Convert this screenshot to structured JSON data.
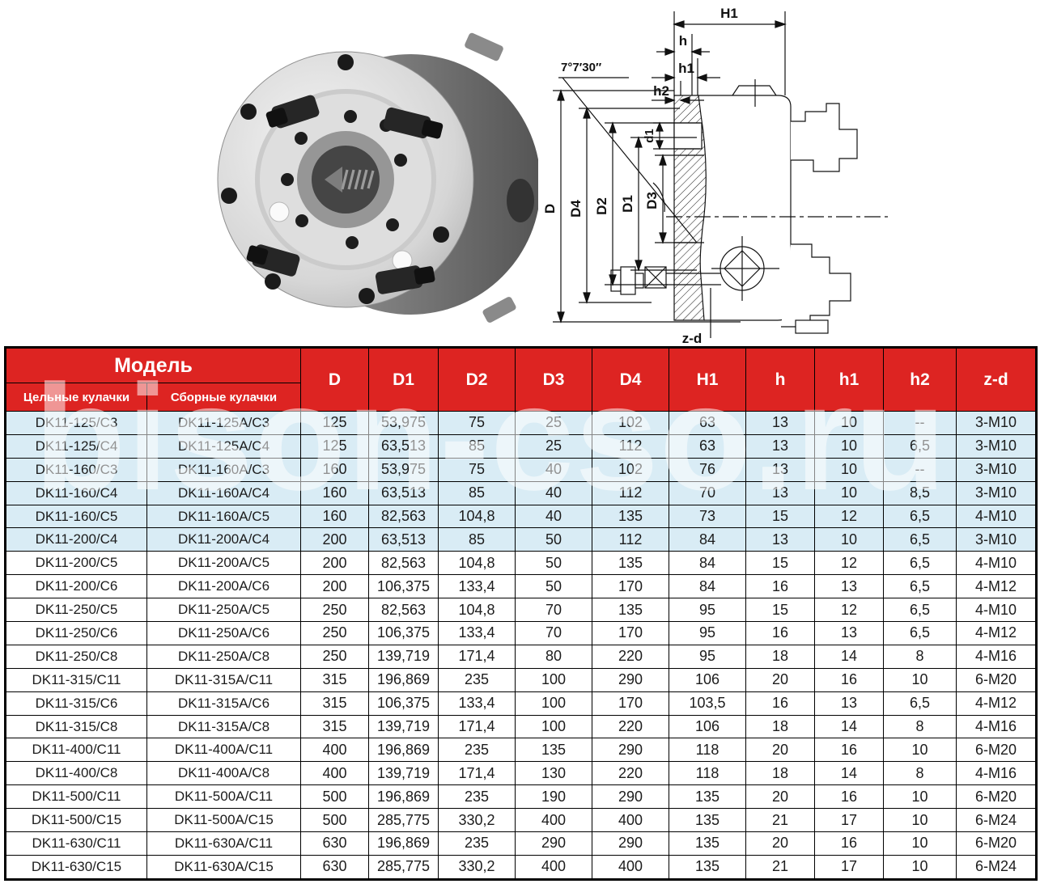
{
  "watermark": {
    "text": "bison-cso.ru"
  },
  "drawing": {
    "angle": "7°7′30″",
    "dims": {
      "H1": "H1",
      "h": "h",
      "h1": "h1",
      "h2": "h2",
      "d1": "d1",
      "D": "D",
      "D4": "D4",
      "D2": "D2",
      "D1": "D1",
      "D3": "D3",
      "zd": "z-d"
    }
  },
  "table": {
    "header": {
      "model": "Модель",
      "solid": "Цельные кулачки",
      "assembled": "Сборные кулачки",
      "dims": [
        "D",
        "D1",
        "D2",
        "D3",
        "D4",
        "H1",
        "h",
        "h1",
        "h2",
        "z-d"
      ]
    },
    "rows": [
      {
        "highlight": true,
        "cells": [
          "DK11-125/C3",
          "DK11-125A/C3",
          "125",
          "53,975",
          "75",
          "25",
          "102",
          "63",
          "13",
          "10",
          "--",
          "3-M10"
        ]
      },
      {
        "highlight": true,
        "cells": [
          "DK11-125/C4",
          "DK11-125A/C4",
          "125",
          "63,513",
          "85",
          "25",
          "112",
          "63",
          "13",
          "10",
          "6,5",
          "3-M10"
        ]
      },
      {
        "highlight": true,
        "cells": [
          "DK11-160/C3",
          "DK11-160A/C3",
          "160",
          "53,975",
          "75",
          "40",
          "102",
          "76",
          "13",
          "10",
          "--",
          "3-M10"
        ]
      },
      {
        "highlight": true,
        "cells": [
          "DK11-160/C4",
          "DK11-160A/C4",
          "160",
          "63,513",
          "85",
          "40",
          "112",
          "70",
          "13",
          "10",
          "8,5",
          "3-M10"
        ]
      },
      {
        "highlight": true,
        "cells": [
          "DK11-160/C5",
          "DK11-160A/C5",
          "160",
          "82,563",
          "104,8",
          "40",
          "135",
          "73",
          "15",
          "12",
          "6,5",
          "4-M10"
        ]
      },
      {
        "highlight": true,
        "cells": [
          "DK11-200/C4",
          "DK11-200A/C4",
          "200",
          "63,513",
          "85",
          "50",
          "112",
          "84",
          "13",
          "10",
          "6,5",
          "3-M10"
        ]
      },
      {
        "highlight": false,
        "cells": [
          "DK11-200/C5",
          "DK11-200A/C5",
          "200",
          "82,563",
          "104,8",
          "50",
          "135",
          "84",
          "15",
          "12",
          "6,5",
          "4-M10"
        ]
      },
      {
        "highlight": false,
        "cells": [
          "DK11-200/C6",
          "DK11-200A/C6",
          "200",
          "106,375",
          "133,4",
          "50",
          "170",
          "84",
          "16",
          "13",
          "6,5",
          "4-M12"
        ]
      },
      {
        "highlight": false,
        "cells": [
          "DK11-250/C5",
          "DK11-250A/C5",
          "250",
          "82,563",
          "104,8",
          "70",
          "135",
          "95",
          "15",
          "12",
          "6,5",
          "4-M10"
        ]
      },
      {
        "highlight": false,
        "cells": [
          "DK11-250/C6",
          "DK11-250A/C6",
          "250",
          "106,375",
          "133,4",
          "70",
          "170",
          "95",
          "16",
          "13",
          "6,5",
          "4-M12"
        ]
      },
      {
        "highlight": false,
        "cells": [
          "DK11-250/C8",
          "DK11-250A/C8",
          "250",
          "139,719",
          "171,4",
          "80",
          "220",
          "95",
          "18",
          "14",
          "8",
          "4-M16"
        ]
      },
      {
        "highlight": false,
        "cells": [
          "DK11-315/C11",
          "DK11-315A/C11",
          "315",
          "196,869",
          "235",
          "100",
          "290",
          "106",
          "20",
          "16",
          "10",
          "6-M20"
        ]
      },
      {
        "highlight": false,
        "cells": [
          "DK11-315/C6",
          "DK11-315A/C6",
          "315",
          "106,375",
          "133,4",
          "100",
          "170",
          "103,5",
          "16",
          "13",
          "6,5",
          "4-M12"
        ]
      },
      {
        "highlight": false,
        "cells": [
          "DK11-315/C8",
          "DK11-315A/C8",
          "315",
          "139,719",
          "171,4",
          "100",
          "220",
          "106",
          "18",
          "14",
          "8",
          "4-M16"
        ]
      },
      {
        "highlight": false,
        "cells": [
          "DK11-400/C11",
          "DK11-400A/C11",
          "400",
          "196,869",
          "235",
          "135",
          "290",
          "118",
          "20",
          "16",
          "10",
          "6-M20"
        ]
      },
      {
        "highlight": false,
        "cells": [
          "DK11-400/C8",
          "DK11-400A/C8",
          "400",
          "139,719",
          "171,4",
          "130",
          "220",
          "118",
          "18",
          "14",
          "8",
          "4-M16"
        ]
      },
      {
        "highlight": false,
        "cells": [
          "DK11-500/C11",
          "DK11-500A/C11",
          "500",
          "196,869",
          "235",
          "190",
          "290",
          "135",
          "20",
          "16",
          "10",
          "6-M20"
        ]
      },
      {
        "highlight": false,
        "cells": [
          "DK11-500/C15",
          "DK11-500A/C15",
          "500",
          "285,775",
          "330,2",
          "400",
          "400",
          "135",
          "21",
          "17",
          "10",
          "6-M24"
        ]
      },
      {
        "highlight": false,
        "cells": [
          "DK11-630/C11",
          "DK11-630A/C11",
          "630",
          "196,869",
          "235",
          "290",
          "290",
          "135",
          "20",
          "16",
          "10",
          "6-M20"
        ]
      },
      {
        "highlight": false,
        "cells": [
          "DK11-630/C15",
          "DK11-630A/C15",
          "630",
          "285,775",
          "330,2",
          "400",
          "400",
          "135",
          "21",
          "17",
          "10",
          "6-M24"
        ]
      }
    ]
  },
  "colors": {
    "header_red": "#dd2422",
    "row_highlight_blue": "#d9ecf5",
    "line": "#111111"
  }
}
